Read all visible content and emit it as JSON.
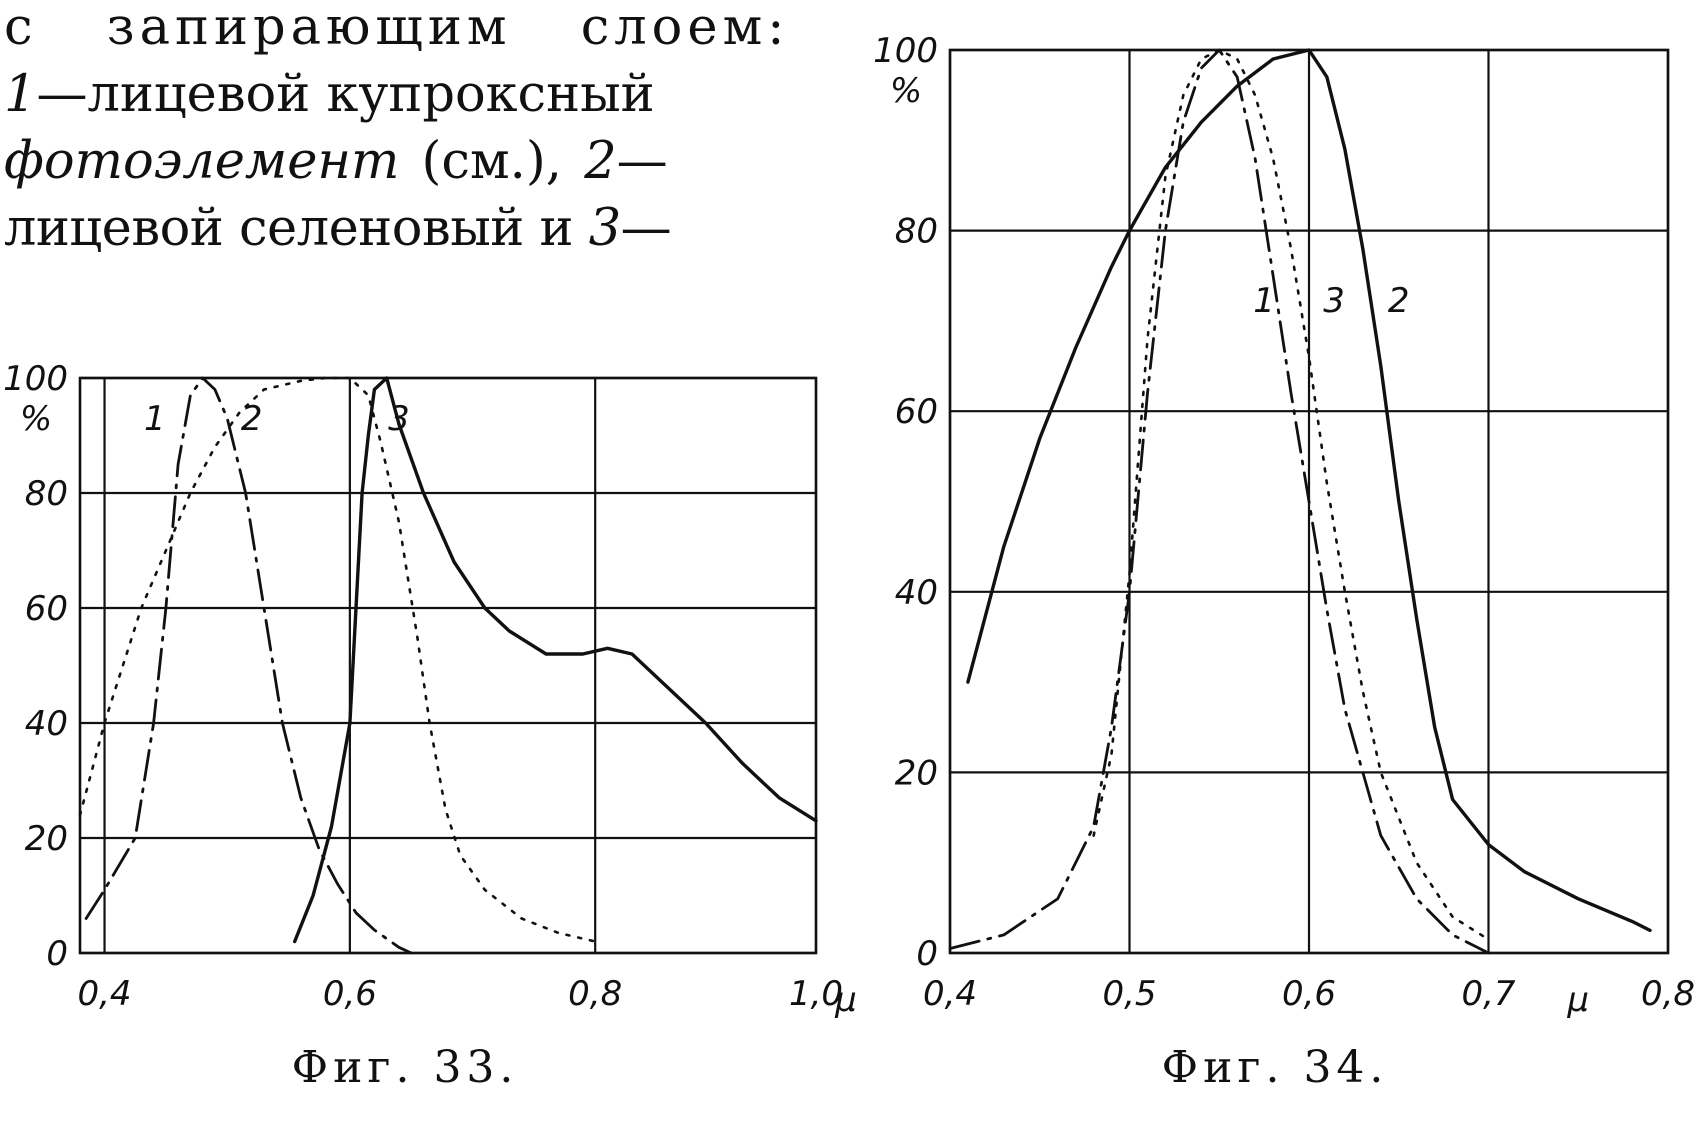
{
  "text_lines": [
    [
      {
        "t": "с запирающим слоем:",
        "i": false
      }
    ],
    [
      {
        "t": "1",
        "i": true
      },
      {
        "t": "—лицевой купроксный",
        "i": false
      }
    ],
    [
      {
        "t": "фотоэлемент",
        "i": true
      },
      {
        "t": " (см.), ",
        "i": false
      },
      {
        "t": "2",
        "i": true
      },
      {
        "t": "—",
        "i": false
      }
    ],
    [
      {
        "t": "лицевой селеновый и ",
        "i": false
      },
      {
        "t": "3",
        "i": true
      },
      {
        "t": "—",
        "i": false
      }
    ]
  ],
  "chart_data": [
    {
      "type": "line",
      "title": "Фиг. 33.",
      "xlabel": "μ",
      "ylabel": "%",
      "xlim": [
        0.38,
        0.98
      ],
      "ylim": [
        0,
        100
      ],
      "x_ticks": [
        {
          "v": 0.4,
          "label": "0,4"
        },
        {
          "v": 0.6,
          "label": "0,6"
        },
        {
          "v": 0.8,
          "label": "0,8"
        },
        {
          "v": 0.98,
          "label": "1,0"
        }
      ],
      "x_unit_label": "μ",
      "y_ticks": [
        {
          "v": 0,
          "label": "0"
        },
        {
          "v": 20,
          "label": "20"
        },
        {
          "v": 40,
          "label": "40"
        },
        {
          "v": 60,
          "label": "60"
        },
        {
          "v": 80,
          "label": "80"
        },
        {
          "v": 100,
          "label": "100"
        }
      ],
      "y_unit_label": "%",
      "grid": true,
      "series": [
        {
          "name": "1",
          "style": "dashdot",
          "points": [
            [
              0.385,
              6
            ],
            [
              0.4,
              11
            ],
            [
              0.425,
              20
            ],
            [
              0.44,
              40
            ],
            [
              0.45,
              60
            ],
            [
              0.46,
              85
            ],
            [
              0.47,
              97
            ],
            [
              0.48,
              100
            ],
            [
              0.49,
              98
            ],
            [
              0.5,
              93
            ],
            [
              0.515,
              80
            ],
            [
              0.53,
              60
            ],
            [
              0.545,
              40
            ],
            [
              0.56,
              27
            ],
            [
              0.575,
              18
            ],
            [
              0.59,
              12
            ],
            [
              0.605,
              7
            ],
            [
              0.62,
              4
            ],
            [
              0.64,
              1
            ],
            [
              0.65,
              0
            ]
          ]
        },
        {
          "name": "2",
          "style": "dotted",
          "points": [
            [
              0.38,
              24
            ],
            [
              0.39,
              32
            ],
            [
              0.4,
              40
            ],
            [
              0.415,
              50
            ],
            [
              0.43,
              60
            ],
            [
              0.45,
              70
            ],
            [
              0.47,
              80
            ],
            [
              0.49,
              88
            ],
            [
              0.51,
              94
            ],
            [
              0.53,
              98
            ],
            [
              0.56,
              99.5
            ],
            [
              0.58,
              100
            ],
            [
              0.6,
              100
            ],
            [
              0.615,
              97
            ],
            [
              0.625,
              89
            ],
            [
              0.64,
              75
            ],
            [
              0.655,
              55
            ],
            [
              0.665,
              40
            ],
            [
              0.678,
              25
            ],
            [
              0.69,
              17
            ],
            [
              0.71,
              11
            ],
            [
              0.74,
              6
            ],
            [
              0.77,
              3.5
            ],
            [
              0.8,
              2
            ]
          ]
        },
        {
          "name": "3",
          "style": "solid",
          "points": [
            [
              0.555,
              2
            ],
            [
              0.57,
              10
            ],
            [
              0.585,
              22
            ],
            [
              0.6,
              40
            ],
            [
              0.605,
              60
            ],
            [
              0.61,
              80
            ],
            [
              0.615,
              90
            ],
            [
              0.62,
              98
            ],
            [
              0.63,
              100
            ],
            [
              0.64,
              92
            ],
            [
              0.66,
              80
            ],
            [
              0.685,
              68
            ],
            [
              0.71,
              60
            ],
            [
              0.73,
              56
            ],
            [
              0.76,
              52
            ],
            [
              0.79,
              52
            ],
            [
              0.81,
              53
            ],
            [
              0.83,
              52
            ],
            [
              0.86,
              46
            ],
            [
              0.89,
              40
            ],
            [
              0.92,
              33
            ],
            [
              0.95,
              27
            ],
            [
              0.98,
              23
            ]
          ]
        }
      ],
      "series_labels": [
        {
          "text": "1",
          "x": 0.441,
          "y": 91
        },
        {
          "text": "2",
          "x": 0.52,
          "y": 91
        },
        {
          "text": "3",
          "x": 0.64,
          "y": 91
        }
      ]
    },
    {
      "type": "line",
      "title": "Фиг. 34.",
      "xlabel": "μ",
      "ylabel": "%",
      "xlim": [
        0.4,
        0.8
      ],
      "ylim": [
        0,
        100
      ],
      "x_ticks": [
        {
          "v": 0.4,
          "label": "0,4"
        },
        {
          "v": 0.5,
          "label": "0,5"
        },
        {
          "v": 0.6,
          "label": "0,6"
        },
        {
          "v": 0.7,
          "label": "0,7"
        },
        {
          "v": 0.8,
          "label": "0,8"
        }
      ],
      "x_unit_label": "μ",
      "y_ticks": [
        {
          "v": 0,
          "label": "0"
        },
        {
          "v": 20,
          "label": "20"
        },
        {
          "v": 40,
          "label": "40"
        },
        {
          "v": 60,
          "label": "60"
        },
        {
          "v": 80,
          "label": "80"
        },
        {
          "v": 100,
          "label": "100"
        }
      ],
      "y_unit_label": "%",
      "grid": true,
      "series": [
        {
          "name": "1",
          "style": "dashdot",
          "points": [
            [
              0.4,
              0.5
            ],
            [
              0.43,
              2
            ],
            [
              0.46,
              6
            ],
            [
              0.48,
              14
            ],
            [
              0.49,
              25
            ],
            [
              0.5,
              40
            ],
            [
              0.51,
              62
            ],
            [
              0.52,
              80
            ],
            [
              0.53,
              92
            ],
            [
              0.54,
              98
            ],
            [
              0.55,
              100
            ],
            [
              0.56,
              97
            ],
            [
              0.57,
              88
            ],
            [
              0.58,
              75
            ],
            [
              0.59,
              62
            ],
            [
              0.6,
              50
            ],
            [
              0.61,
              38
            ],
            [
              0.62,
              27
            ],
            [
              0.64,
              13
            ],
            [
              0.66,
              6
            ],
            [
              0.68,
              2
            ],
            [
              0.7,
              0
            ]
          ]
        },
        {
          "name": "2",
          "style": "solid",
          "points": [
            [
              0.41,
              30
            ],
            [
              0.43,
              45
            ],
            [
              0.45,
              57
            ],
            [
              0.47,
              67
            ],
            [
              0.49,
              76
            ],
            [
              0.5,
              80
            ],
            [
              0.52,
              87
            ],
            [
              0.54,
              92
            ],
            [
              0.56,
              96
            ],
            [
              0.58,
              99
            ],
            [
              0.6,
              100
            ],
            [
              0.61,
              97
            ],
            [
              0.62,
              89
            ],
            [
              0.63,
              78
            ],
            [
              0.64,
              65
            ],
            [
              0.65,
              50
            ],
            [
              0.66,
              37
            ],
            [
              0.67,
              25
            ],
            [
              0.68,
              17
            ],
            [
              0.7,
              12
            ],
            [
              0.72,
              9
            ],
            [
              0.75,
              6
            ],
            [
              0.78,
              3.5
            ],
            [
              0.79,
              2.5
            ]
          ]
        },
        {
          "name": "3",
          "style": "dotted",
          "points": [
            [
              0.48,
              13
            ],
            [
              0.49,
              22
            ],
            [
              0.5,
              42
            ],
            [
              0.51,
              68
            ],
            [
              0.52,
              86
            ],
            [
              0.53,
              95
            ],
            [
              0.54,
              99
            ],
            [
              0.55,
              100
            ],
            [
              0.56,
              99
            ],
            [
              0.57,
              95
            ],
            [
              0.58,
              88
            ],
            [
              0.59,
              78
            ],
            [
              0.6,
              66
            ],
            [
              0.61,
              52
            ],
            [
              0.62,
              40
            ],
            [
              0.63,
              29
            ],
            [
              0.64,
              20
            ],
            [
              0.66,
              10
            ],
            [
              0.68,
              4
            ],
            [
              0.7,
              1.5
            ]
          ]
        }
      ],
      "series_labels": [
        {
          "text": "1",
          "x": 0.575,
          "y": 71
        },
        {
          "text": "3",
          "x": 0.614,
          "y": 71
        },
        {
          "text": "2",
          "x": 0.65,
          "y": 71
        }
      ]
    }
  ]
}
